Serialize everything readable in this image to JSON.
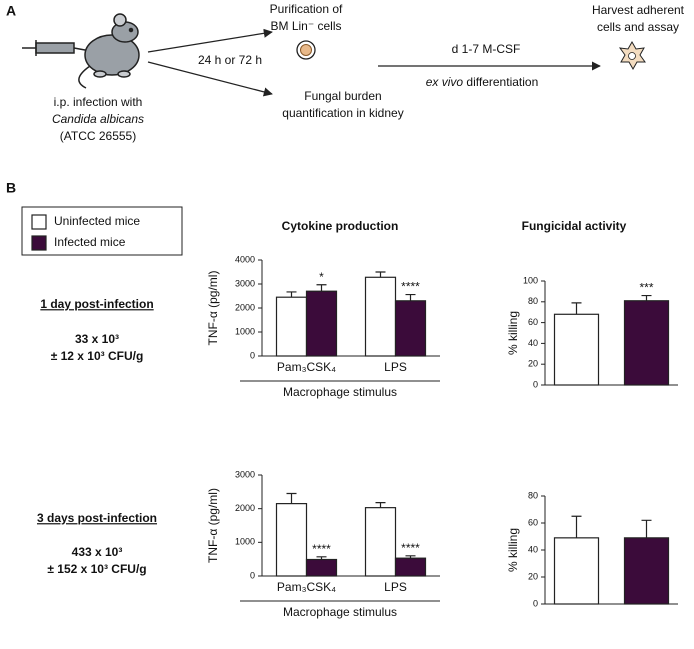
{
  "panel_a": {
    "label": "A",
    "infection": [
      "i.p. infection with",
      "Candida albicans",
      "(ATCC 26555)"
    ],
    "timing": "24 h or 72 h",
    "purification": [
      "Purification of",
      "BM Lin⁻ cells"
    ],
    "fungal": [
      "Fungal burden",
      "quantification in kidney"
    ],
    "culture": [
      "d 1-7 M-CSF",
      "ex vivo",
      "differentiation"
    ],
    "harvest": [
      "Harvest adherent",
      "cells and assay"
    ]
  },
  "panel_b": {
    "label": "B",
    "column_titles": [
      "Cytokine production",
      "Fungicidal activity"
    ],
    "rows": [
      {
        "title": "1 day post-infection",
        "burden": [
          "33 x 10³",
          "± 12 x 10³ CFU/g"
        ]
      },
      {
        "title": "3 days post-infection",
        "burden": [
          "433 x 10³",
          "± 152 x 10³ CFU/g"
        ]
      }
    ]
  },
  "chart_data": [
    {
      "type": "bar",
      "y_label": "TNF-α (pg/ml)",
      "x_label": "Macrophage stimulus",
      "categories": [
        "Pam₃CSK₄",
        "LPS"
      ],
      "ylim": [
        0,
        4000
      ],
      "yticks": [
        0,
        1000,
        2000,
        3000,
        4000
      ],
      "series": [
        {
          "name": "Uninfected mice",
          "color": "#ffffff",
          "values": [
            2450,
            3280
          ],
          "errors": [
            220,
            220
          ]
        },
        {
          "name": "Infected mice",
          "color": "#3b0b3a",
          "values": [
            2700,
            2300
          ],
          "errors": [
            270,
            260
          ],
          "labels": [
            "*",
            "****"
          ]
        }
      ]
    },
    {
      "type": "bar",
      "y_label": "% killing",
      "categories": [
        null
      ],
      "ylim": [
        0,
        100
      ],
      "yticks": [
        0,
        20,
        40,
        60,
        80,
        100
      ],
      "series": [
        {
          "name": "Uninfected mice",
          "color": "#ffffff",
          "values": [
            68
          ],
          "errors": [
            11
          ]
        },
        {
          "name": "Infected mice",
          "color": "#3b0b3a",
          "values": [
            81
          ],
          "errors": [
            5
          ],
          "labels": [
            "***"
          ]
        }
      ]
    },
    {
      "type": "bar",
      "y_label": "TNF-α (pg/ml)",
      "x_label": "Macrophage stimulus",
      "categories": [
        "Pam₃CSK₄",
        "LPS"
      ],
      "ylim": [
        0,
        3000
      ],
      "yticks": [
        0,
        1000,
        2000,
        3000
      ],
      "series": [
        {
          "name": "Uninfected mice",
          "color": "#ffffff",
          "values": [
            2150,
            2030
          ],
          "errors": [
            300,
            150
          ]
        },
        {
          "name": "Infected mice",
          "color": "#3b0b3a",
          "values": [
            490,
            530
          ],
          "errors": [
            80,
            70
          ],
          "labels": [
            "****",
            "****"
          ]
        }
      ]
    },
    {
      "type": "bar",
      "y_label": "% killing",
      "categories": [
        null
      ],
      "ylim": [
        0,
        80
      ],
      "yticks": [
        0,
        20,
        40,
        60,
        80
      ],
      "series": [
        {
          "name": "Uninfected mice",
          "color": "#ffffff",
          "values": [
            49
          ],
          "errors": [
            16
          ]
        },
        {
          "name": "Infected mice",
          "color": "#3b0b3a",
          "values": [
            49
          ],
          "errors": [
            13
          ]
        }
      ]
    }
  ]
}
